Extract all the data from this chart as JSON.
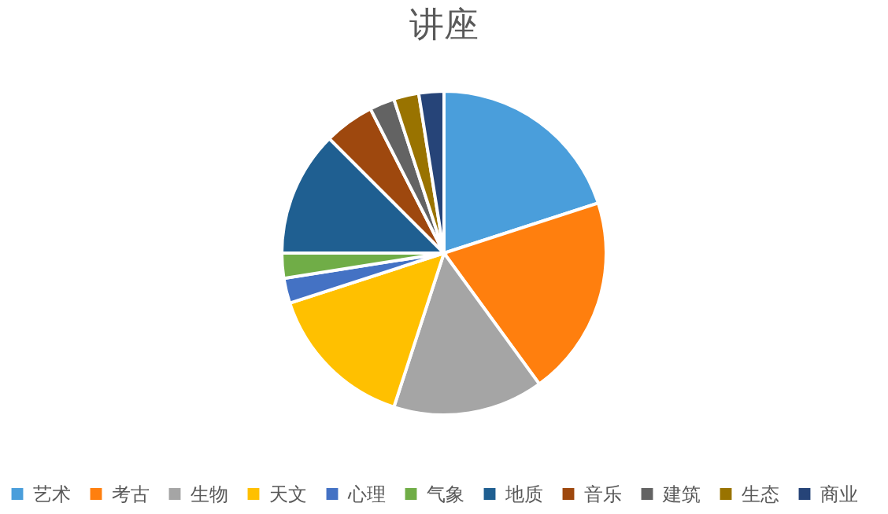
{
  "chart_data": {
    "type": "pie",
    "title": "讲座",
    "categories": [
      "艺术",
      "考古",
      "生物",
      "天文",
      "心理",
      "气象",
      "地质",
      "音乐",
      "建筑",
      "生态",
      "商业"
    ],
    "values": [
      20,
      20,
      15,
      15,
      2.5,
      2.5,
      12.5,
      5,
      2.5,
      2.5,
      2.5
    ],
    "colors": [
      "#4a9edb",
      "#ff7f0e",
      "#a5a5a5",
      "#ffc000",
      "#4472c4",
      "#70ad47",
      "#1f5f91",
      "#9e480e",
      "#636363",
      "#997300",
      "#264478"
    ],
    "legend": "bottom"
  }
}
